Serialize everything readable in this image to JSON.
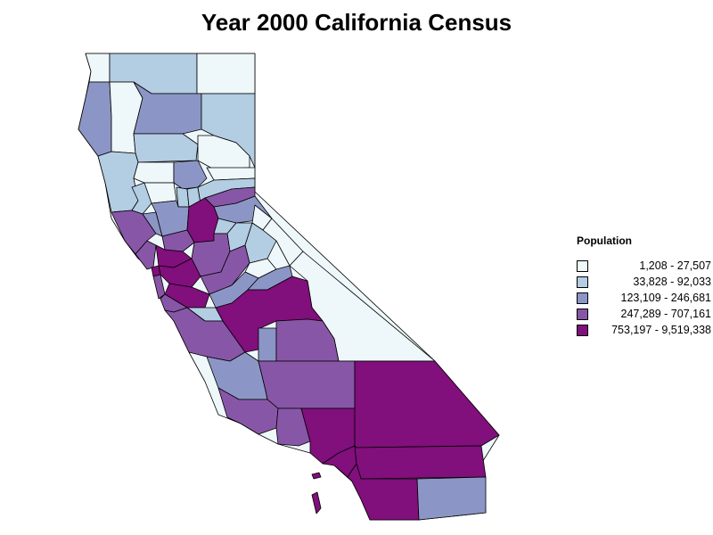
{
  "title": "Year 2000 California Census",
  "legend": {
    "title": "Population",
    "bins": [
      {
        "label": "1,208 - 27,507",
        "color": "#eef7fa"
      },
      {
        "label": "33,828 - 92,033",
        "color": "#b3cde3"
      },
      {
        "label": "123,109 - 246,681",
        "color": "#8c96c6"
      },
      {
        "label": "247,289 - 707,161",
        "color": "#8856a7"
      },
      {
        "label": "753,197 - 9,519,338",
        "color": "#810f7c"
      }
    ]
  }
}
